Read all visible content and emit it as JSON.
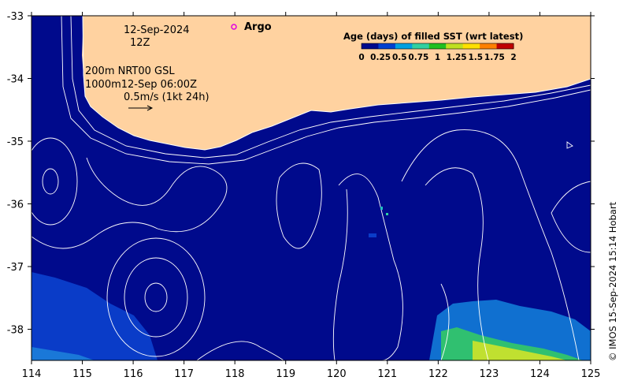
{
  "map": {
    "date_line": "12-Sep-2024",
    "time_line": "12Z",
    "contour_line1": "200m  NRT00 GSL",
    "contour_line2": "1000m12-Sep 06:00Z",
    "vector_scale": "0.5m/s (1kt 24h)",
    "argo_label": "Argo",
    "argo_marker_color": "#e000e0",
    "land_color": "#ffd2a0",
    "ocean_color": "#000a8c",
    "x_ticks": [
      "114",
      "115",
      "116",
      "117",
      "118",
      "119",
      "120",
      "121",
      "122",
      "123",
      "124",
      "125"
    ],
    "y_ticks": [
      "-33",
      "-34",
      "-35",
      "-36",
      "-37",
      "-38"
    ],
    "credit": "© IMOS 15-Sep-2024 15:14 Hobart"
  },
  "colorbar": {
    "title": "Age (days) of filled SST (wrt latest)",
    "tick_labels": [
      "0",
      "0.25",
      "0.5",
      "0.75",
      "1",
      "1.25",
      "1.5",
      "1.75",
      "2"
    ],
    "colors": [
      "#000a8c",
      "#0040d0",
      "#00a0e0",
      "#30d0a0",
      "#20c020",
      "#c0e020",
      "#ffe000",
      "#ff8000",
      "#c00000"
    ]
  }
}
